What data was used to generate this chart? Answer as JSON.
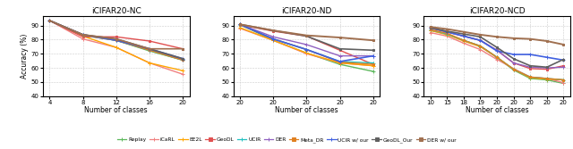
{
  "plot1": {
    "title": "iCIFAR20-NC",
    "xlabel": "Number of classes",
    "ylabel": "Accuracy (%)",
    "xlim": [
      2.5,
      21.5
    ],
    "ylim": [
      40,
      97
    ],
    "yticks": [
      40,
      50,
      60,
      70,
      80,
      90
    ],
    "xticks": [
      4,
      8,
      12,
      16,
      20
    ],
    "series": {
      "Replay": {
        "x": [
          4,
          8,
          12,
          16,
          20
        ],
        "y": [
          93.5,
          83.0,
          79.5,
          72.0,
          65.5
        ],
        "color": "#5cb85c",
        "marker": "+",
        "lw": 1.0
      },
      "iCaRL": {
        "x": [
          4,
          8,
          12,
          16,
          20
        ],
        "y": [
          93.5,
          80.5,
          74.5,
          63.5,
          55.5
        ],
        "color": "#f08080",
        "marker": "+",
        "lw": 1.0
      },
      "EE2L": {
        "x": [
          4,
          8,
          12,
          16,
          20
        ],
        "y": [
          93.5,
          82.5,
          74.5,
          63.5,
          58.0
        ],
        "color": "#ffa500",
        "marker": "+",
        "lw": 1.0
      },
      "GeoDL": {
        "x": [
          4,
          8,
          12,
          16,
          20
        ],
        "y": [
          93.5,
          82.0,
          82.0,
          79.0,
          73.5
        ],
        "color": "#e05050",
        "marker": "s",
        "lw": 1.0,
        "ms": 2
      },
      "UCIR": {
        "x": [
          4,
          8,
          12,
          16,
          20
        ],
        "y": [
          93.5,
          83.5,
          79.5,
          72.5,
          65.5
        ],
        "color": "#20c0c0",
        "marker": "+",
        "lw": 1.0
      },
      "DER": {
        "x": [
          4,
          8,
          12,
          16,
          20
        ],
        "y": [
          93.5,
          83.5,
          80.0,
          73.0,
          66.0
        ],
        "color": "#9060c0",
        "marker": "+",
        "lw": 1.0
      },
      "Meta_DR": {
        "x": [
          4,
          8,
          12,
          16,
          20
        ],
        "y": [
          93.5,
          83.0,
          79.5,
          72.5,
          65.5
        ],
        "color": "#e08020",
        "marker": "s",
        "lw": 1.0,
        "ms": 2
      },
      "UCIR w/ our": {
        "x": [
          4,
          8,
          12,
          16,
          20
        ],
        "y": [
          93.5,
          83.5,
          79.5,
          73.5,
          66.5
        ],
        "color": "#4060e0",
        "marker": "+",
        "lw": 1.2
      },
      "GeoDL_Our": {
        "x": [
          4,
          8,
          12,
          16,
          20
        ],
        "y": [
          93.5,
          83.5,
          80.5,
          73.5,
          66.5
        ],
        "color": "#606060",
        "marker": "s",
        "lw": 1.2,
        "ms": 2
      },
      "DER w/ our": {
        "x": [
          4,
          8,
          12,
          16,
          20
        ],
        "y": [
          93.5,
          83.5,
          80.5,
          73.5,
          73.5
        ],
        "color": "#a07050",
        "marker": "s",
        "lw": 1.2,
        "ms": 2
      }
    }
  },
  "plot2": {
    "title": "iCIFAR20-ND",
    "xlabel": "Number of classes",
    "ylabel": "",
    "xtick_labels": [
      "20",
      "20",
      "20",
      "20",
      "20"
    ],
    "ylim": [
      40,
      97
    ],
    "yticks": [
      40,
      50,
      60,
      70,
      80,
      90
    ],
    "series": {
      "Replay": {
        "x": [
          0,
          1,
          2,
          3,
          4
        ],
        "y": [
          90.8,
          79.5,
          70.5,
          62.5,
          57.5
        ],
        "color": "#5cb85c",
        "marker": "+",
        "lw": 1.0
      },
      "iCaRL": {
        "x": [
          0,
          1,
          2,
          3,
          4
        ],
        "y": [
          88.0,
          79.5,
          70.0,
          63.5,
          61.5
        ],
        "color": "#f08080",
        "marker": "+",
        "lw": 1.0
      },
      "EE2L": {
        "x": [
          0,
          1,
          2,
          3,
          4
        ],
        "y": [
          88.5,
          79.5,
          70.5,
          63.5,
          61.5
        ],
        "color": "#ffa500",
        "marker": "+",
        "lw": 1.0
      },
      "GeoDL": {
        "x": [
          0,
          1,
          2,
          3,
          4
        ],
        "y": [
          90.5,
          86.0,
          82.5,
          72.5,
          62.5
        ],
        "color": "#e05050",
        "marker": "s",
        "lw": 1.0,
        "ms": 2
      },
      "UCIR": {
        "x": [
          0,
          1,
          2,
          3,
          4
        ],
        "y": [
          90.5,
          80.5,
          73.0,
          64.5,
          63.5
        ],
        "color": "#20c0c0",
        "marker": "+",
        "lw": 1.0
      },
      "DER": {
        "x": [
          0,
          1,
          2,
          3,
          4
        ],
        "y": [
          90.8,
          82.0,
          76.5,
          68.5,
          68.5
        ],
        "color": "#9060c0",
        "marker": "+",
        "lw": 1.0
      },
      "Meta_DR": {
        "x": [
          0,
          1,
          2,
          3,
          4
        ],
        "y": [
          90.5,
          80.5,
          73.0,
          64.0,
          62.5
        ],
        "color": "#e08020",
        "marker": "s",
        "lw": 1.0,
        "ms": 2
      },
      "UCIR w/ our": {
        "x": [
          0,
          1,
          2,
          3,
          4
        ],
        "y": [
          90.8,
          80.5,
          73.0,
          64.5,
          68.5
        ],
        "color": "#4060e0",
        "marker": "+",
        "lw": 1.2
      },
      "GeoDL_Our": {
        "x": [
          0,
          1,
          2,
          3,
          4
        ],
        "y": [
          90.8,
          86.5,
          82.5,
          73.5,
          72.5
        ],
        "color": "#606060",
        "marker": "s",
        "lw": 1.2,
        "ms": 2
      },
      "DER w/ our": {
        "x": [
          0,
          1,
          2,
          3,
          4
        ],
        "y": [
          90.8,
          86.5,
          83.0,
          81.5,
          79.5
        ],
        "color": "#a07050",
        "marker": "s",
        "lw": 1.4,
        "ms": 2
      }
    }
  },
  "plot3": {
    "title": "iCIFAR20-NCD",
    "xlabel": "Number of classes",
    "ylabel": "",
    "xtick_labels": [
      "10",
      "15",
      "18",
      "19",
      "20",
      "20",
      "20",
      "20",
      "20"
    ],
    "ylim": [
      40,
      97
    ],
    "yticks": [
      40,
      50,
      60,
      70,
      80,
      90
    ],
    "series": {
      "Replay": {
        "x": [
          0,
          1,
          2,
          3,
          4,
          5,
          6,
          7,
          8
        ],
        "y": [
          86.5,
          84.0,
          79.5,
          75.5,
          67.5,
          58.5,
          52.5,
          51.5,
          49.0
        ],
        "color": "#5cb85c",
        "marker": "+",
        "lw": 1.0
      },
      "iCaRL": {
        "x": [
          0,
          1,
          2,
          3,
          4,
          5,
          6,
          7,
          8
        ],
        "y": [
          85.0,
          82.5,
          77.5,
          73.0,
          66.0,
          59.5,
          53.5,
          52.5,
          49.5
        ],
        "color": "#f08080",
        "marker": "+",
        "lw": 1.0
      },
      "EE2L": {
        "x": [
          0,
          1,
          2,
          3,
          4,
          5,
          6,
          7,
          8
        ],
        "y": [
          86.5,
          83.5,
          79.0,
          75.0,
          67.5,
          59.0,
          53.0,
          52.0,
          51.5
        ],
        "color": "#ffa500",
        "marker": "+",
        "lw": 1.0
      },
      "GeoDL": {
        "x": [
          0,
          1,
          2,
          3,
          4,
          5,
          6,
          7,
          8
        ],
        "y": [
          88.0,
          85.5,
          82.5,
          79.5,
          72.5,
          63.5,
          59.5,
          59.0,
          61.5
        ],
        "color": "#e05050",
        "marker": "s",
        "lw": 1.0,
        "ms": 2
      },
      "UCIR": {
        "x": [
          0,
          1,
          2,
          3,
          4,
          5,
          6,
          7,
          8
        ],
        "y": [
          87.0,
          84.0,
          79.5,
          75.5,
          67.5,
          59.0,
          53.5,
          52.5,
          51.5
        ],
        "color": "#20c0c0",
        "marker": "+",
        "lw": 1.0
      },
      "DER": {
        "x": [
          0,
          1,
          2,
          3,
          4,
          5,
          6,
          7,
          8
        ],
        "y": [
          88.5,
          85.5,
          82.5,
          79.5,
          72.5,
          63.5,
          60.5,
          60.0,
          60.5
        ],
        "color": "#9060c0",
        "marker": "+",
        "lw": 1.0
      },
      "Meta_DR": {
        "x": [
          0,
          1,
          2,
          3,
          4,
          5,
          6,
          7,
          8
        ],
        "y": [
          87.0,
          84.5,
          79.5,
          75.5,
          67.5,
          59.0,
          53.5,
          52.5,
          51.5
        ],
        "color": "#e08020",
        "marker": "s",
        "lw": 1.0,
        "ms": 2
      },
      "UCIR w/ our": {
        "x": [
          0,
          1,
          2,
          3,
          4,
          5,
          6,
          7,
          8
        ],
        "y": [
          88.5,
          85.5,
          82.5,
          79.5,
          72.0,
          69.5,
          69.5,
          67.5,
          65.5
        ],
        "color": "#4060e0",
        "marker": "+",
        "lw": 1.2
      },
      "GeoDL_Our": {
        "x": [
          0,
          1,
          2,
          3,
          4,
          5,
          6,
          7,
          8
        ],
        "y": [
          88.5,
          86.0,
          84.0,
          82.0,
          74.5,
          66.5,
          61.5,
          60.5,
          66.0
        ],
        "color": "#606060",
        "marker": "s",
        "lw": 1.2,
        "ms": 2
      },
      "DER w/ our": {
        "x": [
          0,
          1,
          2,
          3,
          4,
          5,
          6,
          7,
          8
        ],
        "y": [
          89.0,
          87.5,
          85.5,
          83.5,
          82.0,
          81.0,
          80.5,
          79.0,
          76.5
        ],
        "color": "#a07050",
        "marker": "s",
        "lw": 1.4,
        "ms": 2
      }
    }
  },
  "legend_order": [
    "Replay",
    "iCaRL",
    "EE2L",
    "GeoDL",
    "UCIR",
    "DER",
    "Meta_DR",
    "UCIR w/ our",
    "GeoDL_Our",
    "DER w/ our"
  ],
  "legend_colors": {
    "Replay": "#5cb85c",
    "iCaRL": "#f08080",
    "EE2L": "#ffa500",
    "GeoDL": "#e05050",
    "UCIR": "#20c0c0",
    "DER": "#9060c0",
    "Meta_DR": "#e08020",
    "UCIR w/ our": "#4060e0",
    "GeoDL_Our": "#606060",
    "DER w/ our": "#a07050"
  },
  "legend_markers": {
    "Replay": "+",
    "iCaRL": "+",
    "EE2L": "+",
    "GeoDL": "s",
    "UCIR": "+",
    "DER": "+",
    "Meta_DR": "s",
    "UCIR w/ our": "+",
    "GeoDL_Our": "s",
    "DER w/ our": "s"
  }
}
